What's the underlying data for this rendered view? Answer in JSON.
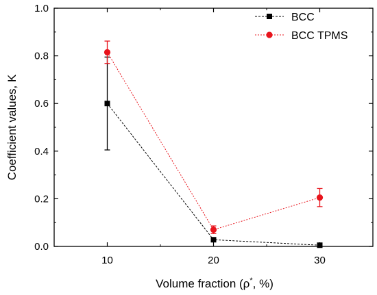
{
  "chart_data": {
    "type": "line",
    "title": "",
    "xlabel": "Volume fraction (ρ*, %)",
    "xlabel_parts": {
      "before": "Volume fraction (ρ",
      "sup": "*",
      "after": ", %)"
    },
    "ylabel": "Coefficient values, K",
    "x": [
      10,
      20,
      30
    ],
    "xlim": [
      5,
      35
    ],
    "ylim": [
      0.0,
      1.0
    ],
    "x_ticks": [
      "10",
      "20",
      "30"
    ],
    "y_ticks": [
      "0.0",
      "0.2",
      "0.4",
      "0.6",
      "0.8",
      "1.0"
    ],
    "grid": false,
    "legend_position": "top-right",
    "series": [
      {
        "name": "BCC",
        "marker": "square",
        "line_style": "dashed",
        "color": "#000000",
        "values": [
          0.6,
          0.028,
          0.005
        ],
        "error": [
          0.195,
          0.004,
          0.003
        ]
      },
      {
        "name": "BCC TPMS",
        "marker": "circle",
        "line_style": "dotted",
        "color": "#e8141c",
        "values": [
          0.815,
          0.07,
          0.205
        ],
        "error": [
          0.047,
          0.016,
          0.038
        ]
      }
    ]
  }
}
